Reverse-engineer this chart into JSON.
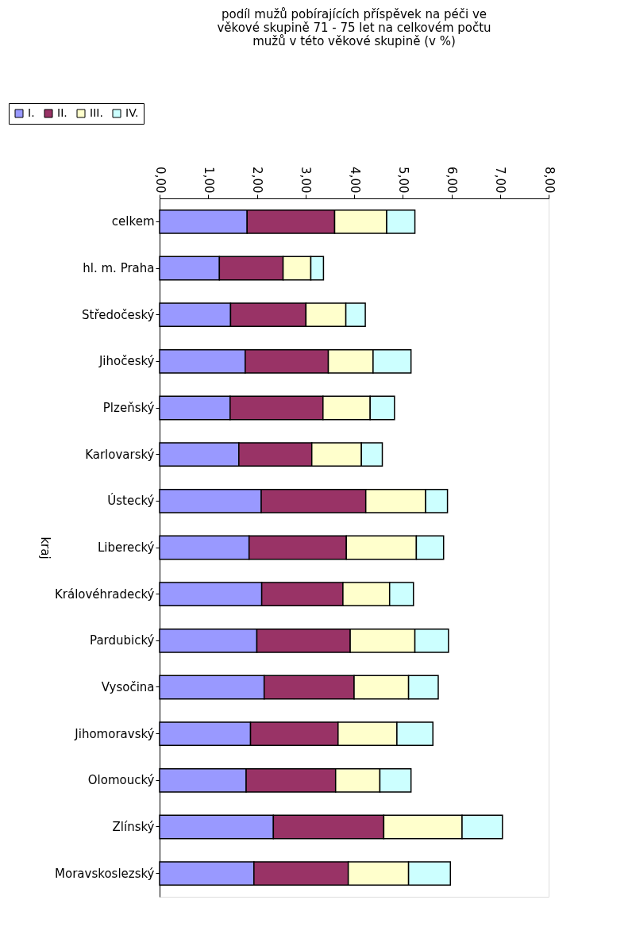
{
  "chart_data": {
    "type": "bar",
    "orientation": "horizontal",
    "stacked": true,
    "title": [
      "podíl mužů pobírajících příspěvek na péči ve",
      "věkové skupině 71 - 75 let na celkovém počtu",
      "mužů v této věkové skupině (v %)"
    ],
    "ylabel": "kraj",
    "categories": [
      "celkem",
      "hl. m. Praha",
      "Středočeský",
      "Jihočeský",
      "Plzeňský",
      "Karlovarský",
      "Ústecký",
      "Liberecký",
      "Královéhradecký",
      "Pardubický",
      "Vysočina",
      "Jihomoravský",
      "Olomoucký",
      "Zlínský",
      "Moravskoslezský"
    ],
    "series": [
      {
        "name": "I.",
        "color": "#9999ff",
        "values": [
          1.8,
          1.23,
          1.46,
          1.76,
          1.45,
          1.63,
          2.09,
          1.84,
          2.1,
          2.0,
          2.15,
          1.87,
          1.78,
          2.34,
          1.94
        ]
      },
      {
        "name": "II.",
        "color": "#993366",
        "values": [
          1.8,
          1.31,
          1.55,
          1.71,
          1.91,
          1.5,
          2.15,
          2.0,
          1.67,
          1.92,
          1.85,
          1.8,
          1.84,
          2.27,
          1.94
        ]
      },
      {
        "name": "III.",
        "color": "#ffffcc",
        "values": [
          1.07,
          0.57,
          0.82,
          0.92,
          0.97,
          1.02,
          1.23,
          1.44,
          0.96,
          1.33,
          1.12,
          1.21,
          0.91,
          1.61,
          1.24
        ]
      },
      {
        "name": "IV.",
        "color": "#ccffff",
        "values": [
          0.58,
          0.26,
          0.4,
          0.78,
          0.5,
          0.43,
          0.45,
          0.56,
          0.49,
          0.69,
          0.61,
          0.74,
          0.64,
          0.83,
          0.86
        ]
      }
    ],
    "xlim": [
      0,
      8
    ],
    "xticks": [
      {
        "value": 0,
        "label": "0,00"
      },
      {
        "value": 1,
        "label": "1,00"
      },
      {
        "value": 2,
        "label": "2,00"
      },
      {
        "value": 3,
        "label": "3,00"
      },
      {
        "value": 4,
        "label": "4,00"
      },
      {
        "value": 5,
        "label": "5,00"
      },
      {
        "value": 6,
        "label": "6,00"
      },
      {
        "value": 7,
        "label": "7,00"
      },
      {
        "value": 8,
        "label": "8,00"
      }
    ],
    "grid": false,
    "legend": "top left"
  }
}
